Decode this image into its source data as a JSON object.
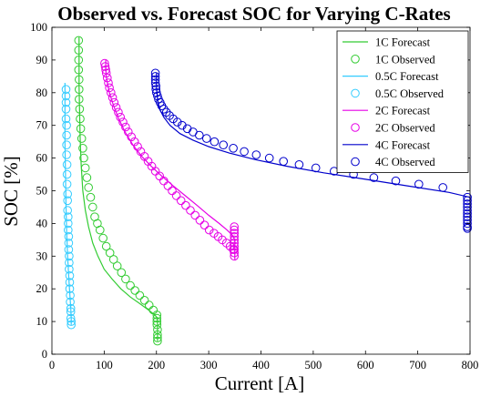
{
  "chart_data": {
    "type": "scatter",
    "title": "Observed vs. Forecast SOC for Varying C-Rates",
    "xlabel": "Current [A]",
    "ylabel": "SOC [%]",
    "xlim": [
      0,
      800
    ],
    "ylim": [
      0,
      100
    ],
    "x_ticks": [
      "0",
      "100",
      "200",
      "300",
      "400",
      "500",
      "600",
      "700",
      "800"
    ],
    "y_ticks": [
      "0",
      "10",
      "20",
      "30",
      "40",
      "50",
      "60",
      "70",
      "80",
      "90",
      "100"
    ],
    "grid": false,
    "legend_position": "top-right",
    "series": [
      {
        "name": "1C Forecast",
        "kind": "line",
        "color": "#33cc33",
        "x": [
          52,
          52,
          52,
          53,
          54,
          56,
          59,
          64,
          70,
          78,
          88,
          100,
          115,
          132,
          150,
          168,
          185,
          197,
          202,
          202,
          202
        ],
        "y": [
          97,
          90,
          82,
          74,
          66,
          58,
          50,
          44,
          39,
          34,
          30,
          26,
          23,
          20,
          17.5,
          15.5,
          13.5,
          12,
          11,
          8,
          4
        ]
      },
      {
        "name": "1C Observed",
        "kind": "scatter",
        "color": "#33cc33",
        "x": [
          51,
          51,
          51,
          51,
          52,
          52,
          52,
          53,
          54,
          55,
          57,
          59,
          61,
          64,
          67,
          70,
          74,
          78,
          82,
          87,
          92,
          98,
          104,
          111,
          118,
          125,
          133,
          141,
          150,
          159,
          168,
          177,
          186,
          194,
          201,
          201,
          201,
          201,
          202,
          202,
          202,
          202
        ],
        "y": [
          96,
          93,
          90,
          87,
          84,
          81,
          78,
          75,
          72,
          69,
          66,
          63,
          60,
          57,
          54,
          51,
          48,
          45,
          42,
          40,
          38,
          35.5,
          33,
          31,
          29,
          27,
          25,
          23,
          21,
          19.5,
          18,
          16.5,
          15,
          13.5,
          12,
          11,
          10,
          9,
          7.5,
          6,
          5,
          4
        ]
      },
      {
        "name": "0.5C Forecast",
        "kind": "line",
        "color": "#33ccff",
        "x": [
          25,
          25,
          25,
          26,
          27,
          28,
          30,
          32,
          34,
          36,
          37,
          37
        ],
        "y": [
          83,
          75,
          65,
          55,
          45,
          38,
          30,
          24,
          19,
          14,
          11,
          9
        ]
      },
      {
        "name": "0.5C Observed",
        "kind": "scatter",
        "color": "#33ccff",
        "x": [
          27,
          27,
          27,
          27,
          27,
          28,
          28,
          28,
          28,
          29,
          29,
          29,
          30,
          30,
          30,
          31,
          31,
          31,
          32,
          32,
          32,
          33,
          33,
          33,
          34,
          34,
          34,
          35,
          35,
          36,
          36,
          36,
          37,
          37
        ],
        "y": [
          81,
          79,
          77,
          75,
          72,
          70,
          67,
          64,
          61,
          58,
          55,
          52,
          49,
          47,
          44,
          42,
          40,
          38,
          36,
          34,
          32,
          30,
          28,
          26,
          24,
          22,
          20,
          18,
          16,
          14,
          13,
          11,
          10,
          9
        ]
      },
      {
        "name": "2C Forecast",
        "kind": "line",
        "color": "#e600e6",
        "x": [
          103,
          103,
          105,
          110,
          118,
          128,
          140,
          155,
          172,
          190,
          210,
          232,
          255,
          278,
          300,
          320,
          335,
          345,
          350,
          350,
          350
        ],
        "y": [
          90,
          87,
          84,
          80,
          76,
          72,
          68,
          64,
          60.5,
          57.5,
          54.5,
          51.5,
          48.5,
          45.5,
          42.5,
          40,
          38,
          36.5,
          35,
          32,
          29
        ]
      },
      {
        "name": "2C Observed",
        "kind": "scatter",
        "color": "#e600e6",
        "x": [
          101,
          102,
          103,
          104,
          106,
          108,
          110,
          113,
          116,
          119,
          123,
          127,
          131,
          136,
          141,
          146,
          152,
          158,
          164,
          170,
          177,
          184,
          191,
          198,
          206,
          214,
          222,
          230,
          238,
          247,
          256,
          265,
          274,
          283,
          292,
          301,
          310,
          318,
          326,
          334,
          341,
          347,
          349,
          349,
          349,
          349,
          349,
          349,
          349,
          349,
          349,
          349
        ],
        "y": [
          89,
          88,
          87,
          86,
          84.5,
          83,
          81.5,
          80,
          78.5,
          77,
          75.5,
          74,
          72.5,
          71,
          69.5,
          68,
          66.5,
          65,
          63.5,
          62,
          60.5,
          59,
          57.5,
          56,
          54.5,
          53,
          51.5,
          50,
          48.5,
          47,
          45.5,
          44,
          42.5,
          41,
          39.5,
          38,
          37,
          36,
          35,
          34,
          33,
          32,
          39,
          38,
          37,
          36,
          35,
          34,
          33,
          32,
          31,
          30
        ]
      },
      {
        "name": "4C Forecast",
        "kind": "line",
        "color": "#0000cc",
        "x": [
          200,
          200,
          202,
          206,
          214,
          226,
          245,
          270,
          300,
          340,
          390,
          450,
          520,
          600,
          680,
          760,
          800,
          800,
          800
        ],
        "y": [
          86,
          82,
          78,
          75,
          72.5,
          70,
          67.5,
          65.5,
          63.5,
          61.5,
          59.5,
          57.5,
          55.5,
          53.5,
          51.5,
          49.5,
          48,
          44,
          39
        ]
      },
      {
        "name": "4C Observed",
        "kind": "scatter",
        "color": "#0000cc",
        "x": [
          198,
          198,
          198,
          198,
          199,
          199,
          200,
          202,
          204,
          207,
          210,
          214,
          219,
          225,
          232,
          240,
          249,
          259,
          270,
          282,
          296,
          311,
          328,
          347,
          368,
          391,
          416,
          443,
          473,
          505,
          540,
          577,
          616,
          658,
          702,
          748,
          795,
          795,
          795,
          795,
          795,
          795,
          795,
          795,
          795,
          795,
          795
        ],
        "y": [
          86,
          85,
          84,
          83,
          82,
          81,
          80,
          79,
          78,
          77,
          76,
          75,
          74,
          73,
          72,
          71,
          70,
          69,
          68,
          67,
          66,
          65,
          64,
          63,
          62,
          61,
          60,
          59,
          58,
          57,
          56,
          55,
          54,
          53,
          52,
          51,
          48,
          47,
          46,
          45,
          44,
          43,
          42,
          41,
          40,
          39,
          38.5
        ]
      }
    ]
  }
}
